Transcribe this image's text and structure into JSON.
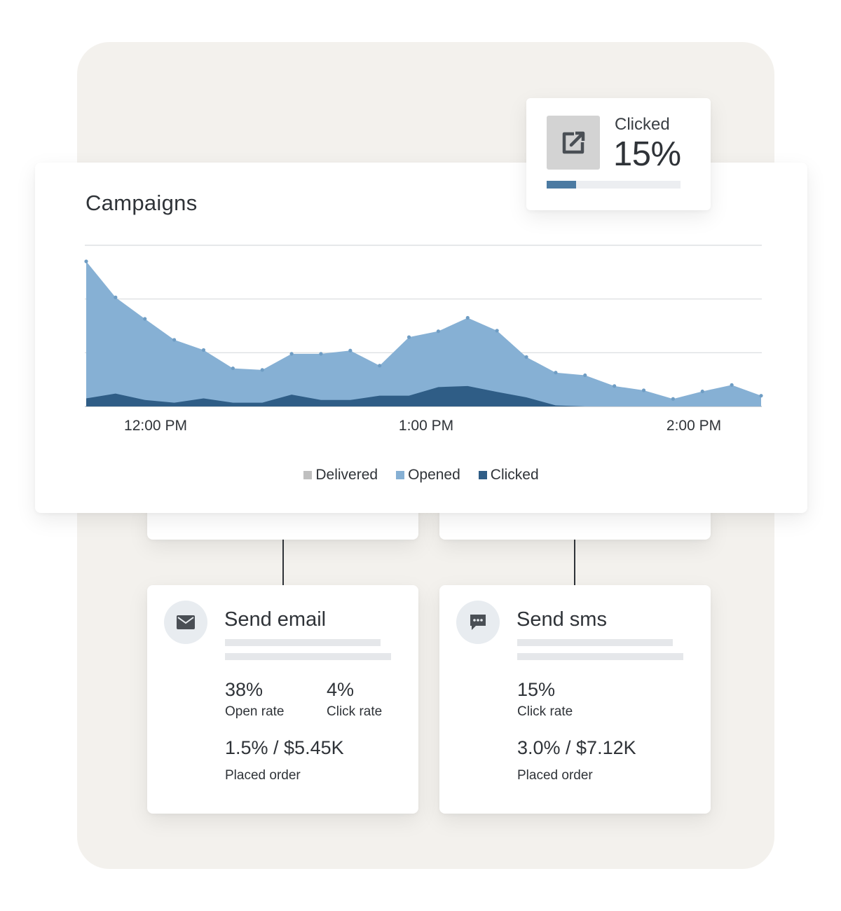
{
  "clicked_card": {
    "label": "Clicked",
    "value": "15%",
    "progress_fraction": 0.22,
    "icon": "external-link-icon"
  },
  "campaigns": {
    "title": "Campaigns",
    "x_ticks": [
      "12:00 PM",
      "1:00 PM",
      "2:00 PM"
    ],
    "legend": [
      {
        "label": "Delivered",
        "color": "#bfbfbf"
      },
      {
        "label": "Opened",
        "color": "#86b0d4"
      },
      {
        "label": "Clicked",
        "color": "#2f5d86"
      }
    ]
  },
  "chart_data": {
    "type": "area",
    "title": "Campaigns",
    "x_ticks": [
      "12:00 PM",
      "1:00 PM",
      "2:00 PM"
    ],
    "grid": true,
    "legend_position": "bottom",
    "ylim": [
      0,
      3
    ],
    "series": [
      {
        "name": "Opened",
        "color": "#86b0d4",
        "values": [
          2.7,
          2.03,
          1.63,
          1.24,
          1.05,
          0.71,
          0.68,
          0.98,
          0.98,
          1.04,
          0.76,
          1.29,
          1.4,
          1.65,
          1.41,
          0.92,
          0.63,
          0.58,
          0.38,
          0.3,
          0.14,
          0.28,
          0.4,
          0.2
        ]
      },
      {
        "name": "Clicked",
        "color": "#2f5d86",
        "values": [
          0.15,
          0.24,
          0.12,
          0.07,
          0.15,
          0.07,
          0.07,
          0.22,
          0.12,
          0.12,
          0.2,
          0.2,
          0.36,
          0.38,
          0.27,
          0.17,
          0.02,
          0,
          0,
          0,
          0,
          0,
          0,
          0
        ]
      }
    ]
  },
  "email_card": {
    "icon": "envelope-icon",
    "title": "Send email",
    "open_rate": {
      "value": "38%",
      "label": "Open rate"
    },
    "click_rate": {
      "value": "4%",
      "label": "Click rate"
    },
    "placed_order": {
      "value": "1.5% / $5.45K",
      "label": "Placed order"
    }
  },
  "sms_card": {
    "icon": "chat-bubble-icon",
    "title": "Send sms",
    "click_rate": {
      "value": "15%",
      "label": "Click rate"
    },
    "placed_order": {
      "value": "3.0% / $7.12K",
      "label": "Placed order"
    }
  }
}
